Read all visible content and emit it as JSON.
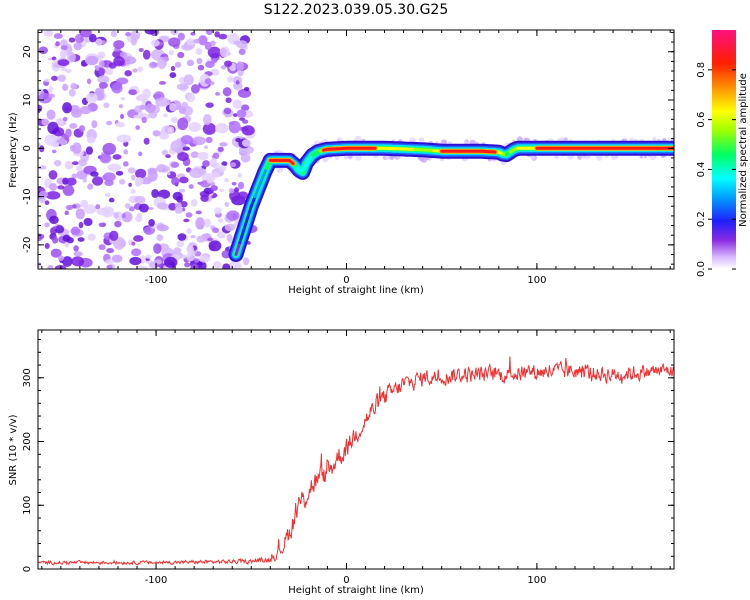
{
  "title": "S122.2023.039.05.30.G25",
  "chart_data": [
    {
      "type": "heatmap",
      "xlabel": "Height of straight line (km)",
      "ylabel": "Frequency (Hz)",
      "xlim": [
        -162,
        172
      ],
      "ylim": [
        -25,
        24.5
      ],
      "xticks": [
        -100,
        0,
        100
      ],
      "yticks": [
        -20,
        -10,
        0,
        10,
        20
      ],
      "colorbar": {
        "label": "Normalized spectral amplitude",
        "range": [
          0,
          0.96
        ],
        "ticks": [
          "0.0",
          "0.2",
          "0.4",
          "0.6",
          "0.8"
        ],
        "colormap": "white-purple-blue-cyan-green-yellow-orange-red-pink"
      },
      "noise_region_x": [
        -162,
        -50
      ],
      "ridge": {
        "x": [
          -58,
          -54,
          -50,
          -46,
          -43,
          -40,
          -35,
          -30,
          -27,
          -25,
          -23,
          -21,
          -18,
          -15,
          -10,
          0,
          20,
          40,
          50,
          60,
          70,
          80,
          82,
          84,
          86,
          88,
          90,
          100,
          120,
          140,
          160,
          170
        ],
        "freq": [
          -22,
          -17,
          -12,
          -8,
          -5,
          -2.5,
          -2.5,
          -2.5,
          -3.5,
          -4.5,
          -5,
          -3,
          -1.5,
          -0.7,
          -0.2,
          0,
          0,
          -0.3,
          -0.6,
          -0.6,
          -0.6,
          -0.8,
          -1.2,
          -1.3,
          -0.8,
          -0.3,
          0,
          0,
          0,
          0,
          0,
          0
        ],
        "amplitude": [
          0.2,
          0.3,
          0.35,
          0.4,
          0.5,
          0.9,
          0.92,
          0.9,
          0.6,
          0.5,
          0.45,
          0.5,
          0.6,
          0.7,
          0.85,
          0.9,
          0.9,
          0.8,
          0.85,
          0.88,
          0.88,
          0.85,
          0.75,
          0.7,
          0.75,
          0.8,
          0.88,
          0.88,
          0.9,
          0.9,
          0.9,
          0.9
        ]
      },
      "strong_segments_x": [
        [
          -40,
          -28
        ],
        [
          -12,
          15
        ],
        [
          50,
          78
        ],
        [
          100,
          172
        ]
      ]
    },
    {
      "type": "line",
      "xlabel": "Height of straight line (km)",
      "ylabel": "SNR (10 * v/v)",
      "xlim": [
        -162,
        172
      ],
      "ylim": [
        0,
        375
      ],
      "xticks": [
        -100,
        0,
        100
      ],
      "yticks": [
        0,
        100,
        200,
        300
      ],
      "color": "#ee3030",
      "envelope": {
        "x": [
          -162,
          -100,
          -50,
          -40,
          -35,
          -30,
          -25,
          -20,
          -15,
          -10,
          -5,
          0,
          5,
          10,
          15,
          20,
          30,
          40,
          60,
          80,
          100,
          120,
          140,
          160,
          172
        ],
        "mean": [
          10,
          10,
          12,
          15,
          28,
          60,
          100,
          125,
          140,
          150,
          175,
          190,
          215,
          235,
          255,
          270,
          290,
          300,
          305,
          305,
          310,
          310,
          305,
          310,
          312
        ],
        "noise": [
          4,
          4,
          5,
          6,
          15,
          25,
          30,
          30,
          28,
          28,
          28,
          25,
          25,
          25,
          25,
          22,
          22,
          20,
          20,
          20,
          20,
          20,
          20,
          18,
          18
        ]
      }
    }
  ]
}
